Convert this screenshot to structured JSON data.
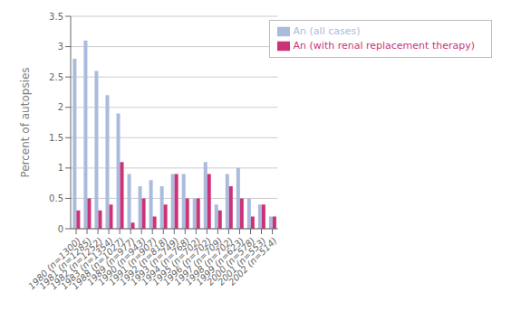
{
  "chart_data": {
    "type": "bar",
    "categories": [
      "1980 (n=1300)",
      "1981 (n=1285)",
      "1982 (n=1252)",
      "1983 (n=1354)",
      "1988 (n=1027)",
      "1989 (n=977)",
      "1990 (n=943)",
      "1991 (n=907)",
      "1992 (n=818)",
      "1993 (n=749)",
      "1994 (n=768)",
      "1995 (n=702)",
      "1996 (n=702)",
      "1997 (n=709)",
      "1998 (n=702)",
      "1999 (n=623)",
      "2000 (n=578)",
      "2001 (n=553)",
      "2002 (n=514)"
    ],
    "series": [
      {
        "name": "An (all cases)",
        "color": "#aabbdd",
        "values": [
          2.8,
          3.1,
          2.6,
          2.2,
          1.9,
          0.9,
          0.7,
          0.8,
          0.7,
          0.9,
          0.9,
          0.5,
          1.1,
          0.4,
          0.9,
          1.0,
          0.5,
          0.4,
          0.2
        ]
      },
      {
        "name": "An (with renal replacement therapy)",
        "color": "#cc3377",
        "values": [
          0.3,
          0.5,
          0.3,
          0.4,
          1.1,
          0.1,
          0.5,
          0.2,
          0.4,
          0.9,
          0.5,
          0.5,
          0.9,
          0.3,
          0.7,
          0.5,
          0.2,
          0.4,
          0.2
        ]
      }
    ],
    "y_label": "Percent of autopsies",
    "ylim": [
      0,
      3.5
    ],
    "yticks": [
      0,
      0.5,
      1,
      1.5,
      2,
      2.5,
      3,
      3.5
    ],
    "grid": true,
    "legend": "upper right"
  }
}
